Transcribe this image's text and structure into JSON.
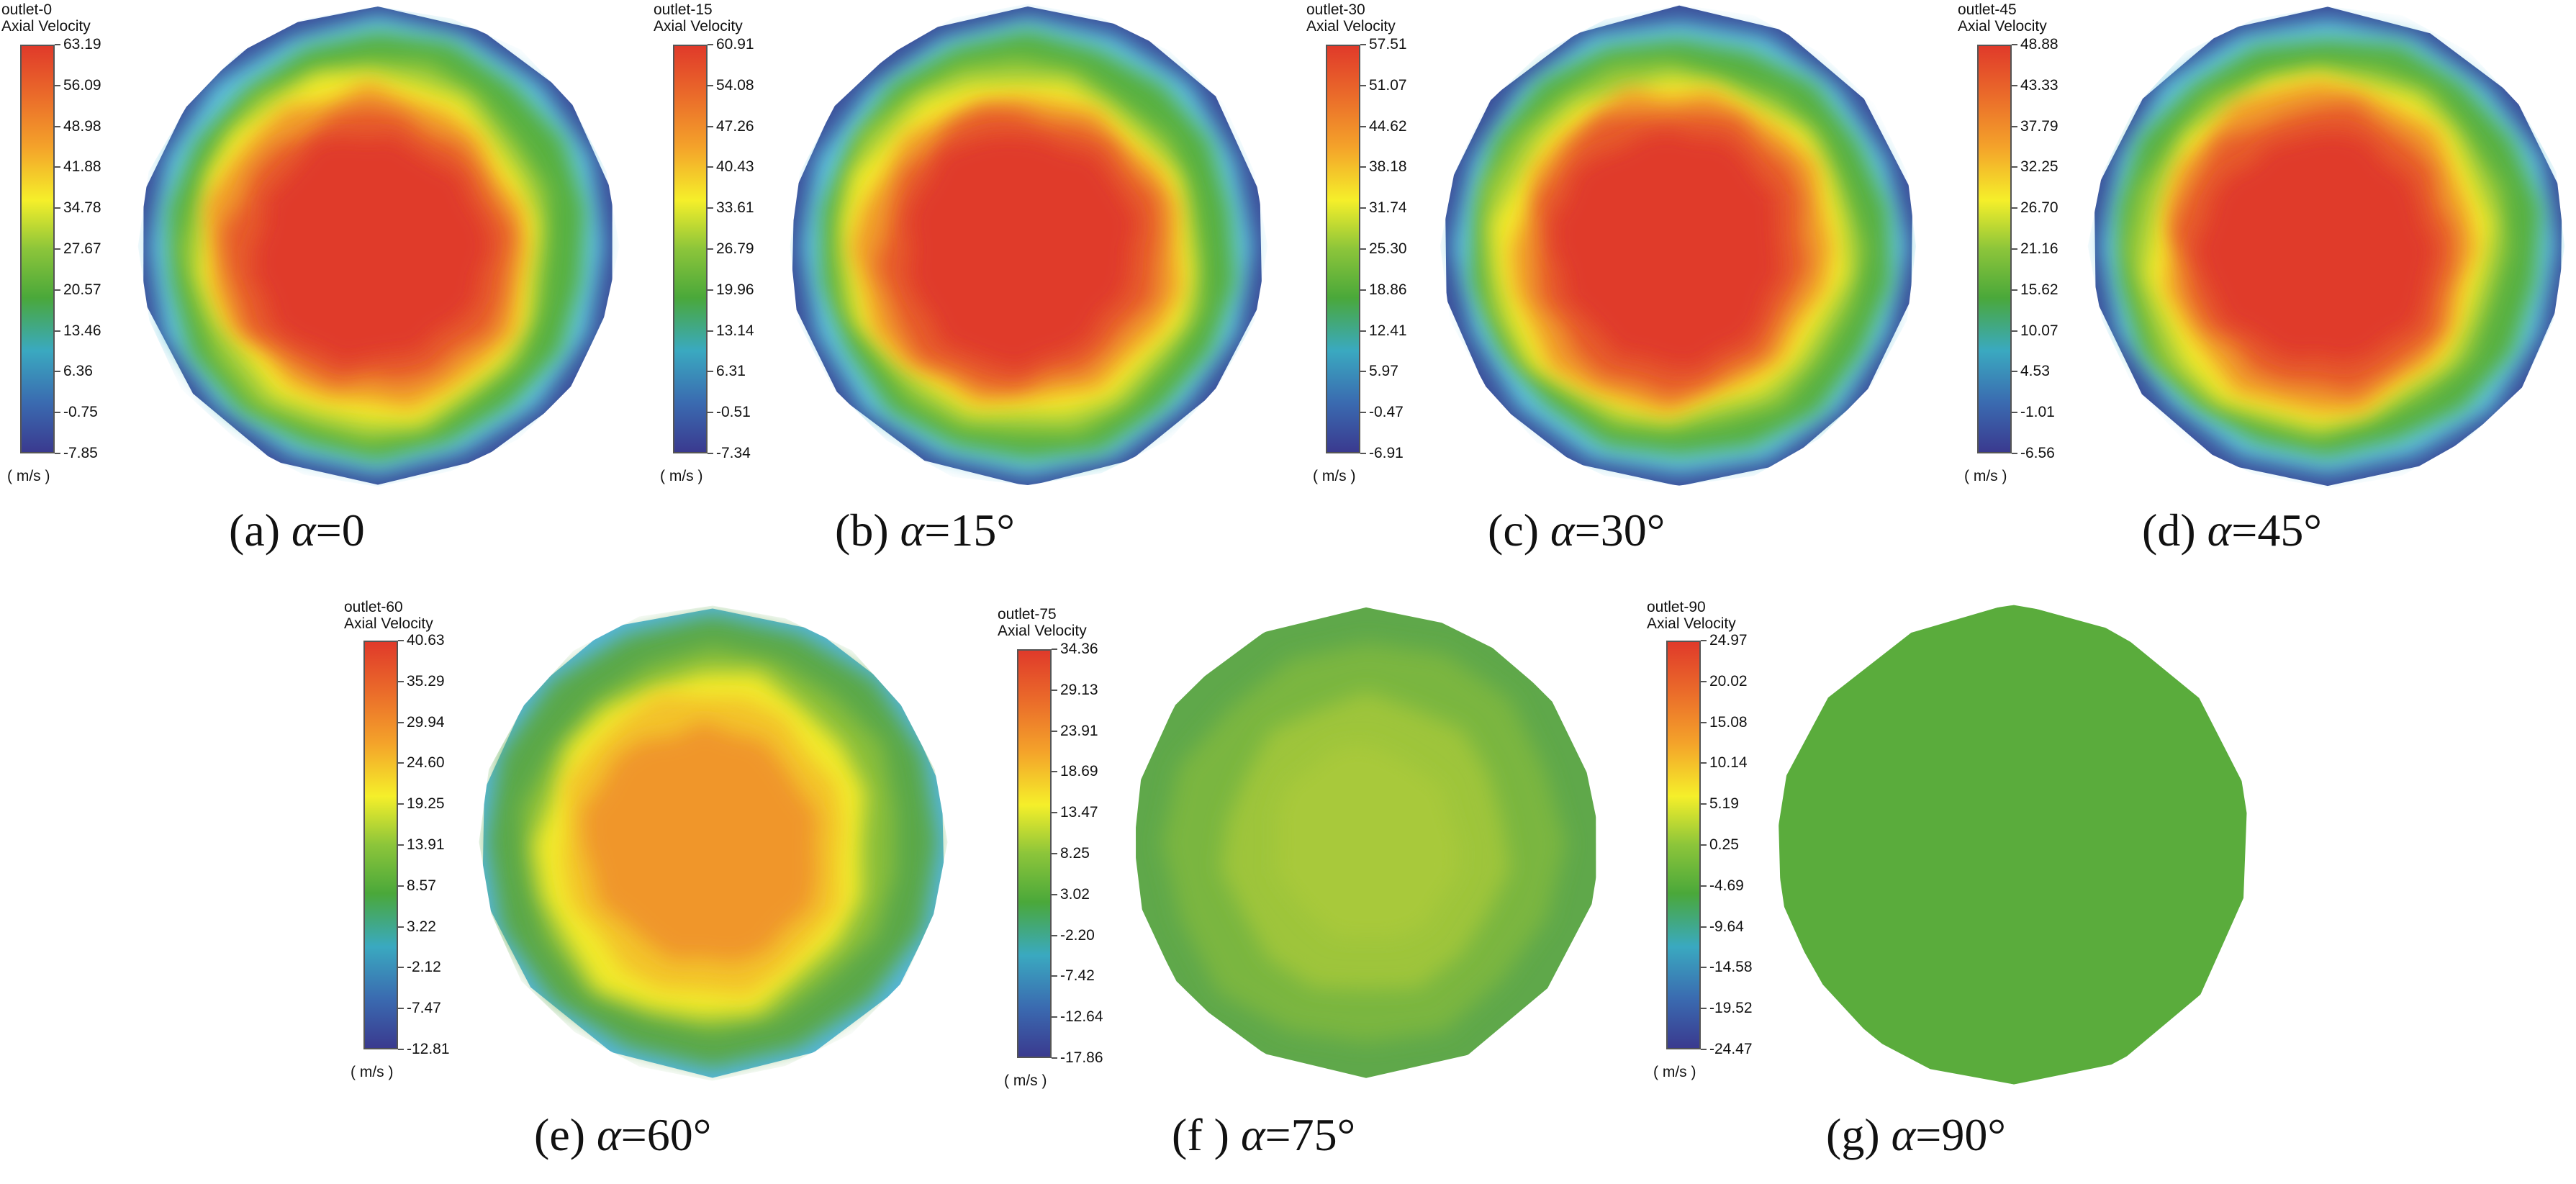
{
  "chart_data": [
    {
      "type": "heatmap",
      "title": "outlet-0",
      "subtitle": "Axial Velocity",
      "unit": "( m/s )",
      "caption_tag": "(a)",
      "caption_eq": "=0",
      "ticks": [
        "63.19",
        "56.09",
        "48.98",
        "41.88",
        "34.78",
        "27.67",
        "20.57",
        "13.46",
        "6.36",
        "-0.75",
        "-7.85"
      ],
      "range": [
        -7.85,
        63.19
      ],
      "core_level": 0.95,
      "rim_color": "#3b4f9a"
    },
    {
      "type": "heatmap",
      "title": "outlet-15",
      "subtitle": "Axial Velocity",
      "unit": "( m/s )",
      "caption_tag": "(b)",
      "caption_eq": "=15",
      "ticks": [
        "60.91",
        "54.08",
        "47.26",
        "40.43",
        "33.61",
        "26.79",
        "19.96",
        "13.14",
        "6.31",
        "-0.51",
        "-7.34"
      ],
      "range": [
        -7.34,
        60.91
      ],
      "core_level": 0.95,
      "rim_color": "#3b4f9a"
    },
    {
      "type": "heatmap",
      "title": "outlet-30",
      "subtitle": "Axial Velocity",
      "unit": "( m/s )",
      "caption_tag": "(c)",
      "caption_eq": "=30",
      "ticks": [
        "57.51",
        "51.07",
        "44.62",
        "38.18",
        "31.74",
        "25.30",
        "18.86",
        "12.41",
        "5.97",
        "-0.47",
        "-6.91"
      ],
      "range": [
        -6.91,
        57.51
      ],
      "core_level": 0.93,
      "rim_color": "#3b4f9a"
    },
    {
      "type": "heatmap",
      "title": "outlet-45",
      "subtitle": "Axial Velocity",
      "unit": "( m/s )",
      "caption_tag": "(d)",
      "caption_eq": "=45",
      "ticks": [
        "48.88",
        "43.33",
        "37.79",
        "32.25",
        "26.70",
        "21.16",
        "15.62",
        "10.07",
        "4.53",
        "-1.01",
        "-6.56"
      ],
      "range": [
        -6.56,
        48.88
      ],
      "core_level": 0.92,
      "rim_color": "#3b4f9a"
    },
    {
      "type": "heatmap",
      "title": "outlet-60",
      "subtitle": "Axial Velocity",
      "unit": "( m/s )",
      "caption_tag": "(e)",
      "caption_eq": "=60",
      "ticks": [
        "40.63",
        "35.29",
        "29.94",
        "24.60",
        "19.25",
        "13.91",
        "8.57",
        "3.22",
        "-2.12",
        "-7.47",
        "-12.81"
      ],
      "range": [
        -12.81,
        40.63
      ],
      "core_level": 0.8,
      "rim_color": "#55b6dd"
    },
    {
      "type": "heatmap",
      "title": "outlet-75",
      "subtitle": "Axial Velocity",
      "unit": "( m/s )",
      "caption_tag": "(f )",
      "caption_eq": "=75",
      "ticks": [
        "34.36",
        "29.13",
        "23.91",
        "18.69",
        "13.47",
        "8.25",
        "3.02",
        "-2.20",
        "-7.42",
        "-12.64",
        "-17.86"
      ],
      "range": [
        -17.86,
        34.36
      ],
      "core_level": 0.6,
      "rim_color": "#6aaa55"
    },
    {
      "type": "heatmap",
      "title": "outlet-90",
      "subtitle": "Axial Velocity",
      "unit": "( m/s )",
      "caption_tag": "(g)",
      "caption_eq": "=90",
      "ticks": [
        "24.97",
        "20.02",
        "15.08",
        "10.14",
        "5.19",
        "0.25",
        "-4.69",
        "-9.64",
        "-14.58",
        "-19.52",
        "-24.47"
      ],
      "range": [
        -24.47,
        24.97
      ],
      "core_level": 0.5,
      "rim_color": "#5aac3c"
    }
  ],
  "symbols": {
    "alpha": "α",
    "degree": "°"
  },
  "colors": {
    "red": "#e03a2a",
    "orange": "#f08a2a",
    "yellow": "#f5ef2a",
    "green": "#4aa83a",
    "cyan": "#3aa9c0",
    "blue": "#3a3a8f"
  }
}
